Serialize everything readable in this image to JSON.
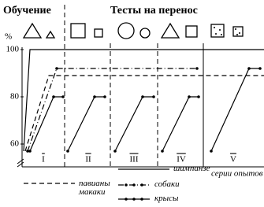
{
  "chart_data": {
    "type": "line",
    "header_training": "Обучение",
    "header_tests": "Тесты на перенос",
    "y_label": "%",
    "x_label": "серии опытов",
    "phases": [
      "I",
      "II",
      "III",
      "IV",
      "V"
    ],
    "xlim": [
      28,
      335
    ],
    "ylim": [
      55,
      102
    ],
    "yticks": [
      60,
      80,
      100
    ],
    "series": [
      {
        "name": "шимпанзе",
        "color": "#000000",
        "style": "solid",
        "x": [
          30,
          38,
          335
        ],
        "values": [
          57,
          100,
          100
        ]
      },
      {
        "name": "павианы макаки",
        "color": "#000000",
        "style": "dashed",
        "x": [
          32,
          62,
          335
        ],
        "values": [
          57,
          89,
          89
        ]
      },
      {
        "name": "собаки",
        "color": "#000000",
        "style": "dashdot-dots",
        "x": [
          35,
          72,
          250
        ],
        "values": [
          57,
          92,
          92
        ]
      },
      {
        "name": "крысы",
        "color": "#000000",
        "style": "solid-dots",
        "x": [
          38,
          68,
          80,
          81,
          86,
          120,
          133,
          134,
          146,
          181,
          195,
          196,
          206,
          240,
          252,
          253,
          268,
          316,
          330
        ],
        "values": [
          57,
          80,
          80,
          null,
          57,
          80,
          80,
          null,
          57,
          80,
          80,
          null,
          57,
          80,
          80,
          null,
          57,
          92,
          92
        ]
      }
    ]
  }
}
